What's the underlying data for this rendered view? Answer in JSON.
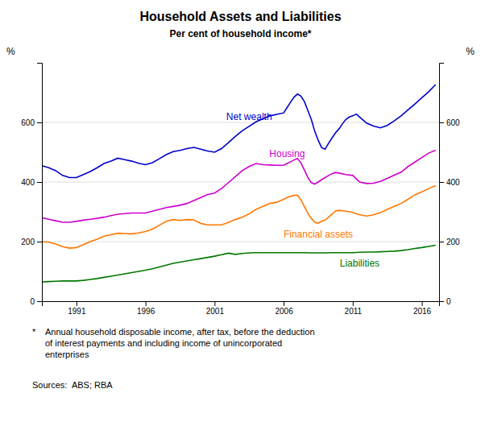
{
  "chart_data": {
    "type": "line",
    "title": "Household Assets and Liabilities",
    "subtitle": "Per cent of household income*",
    "y_label": "%",
    "y2_label": "%",
    "footnote_marker": "*",
    "footnote": "Annual household disposable income, after tax, before the deduction\nof interest payments and including income of unincorporated\nenterprises",
    "source": "Sources:  ABS; RBA",
    "xlim": [
      1988.5,
      2017.25
    ],
    "xticks": [
      1991,
      1996,
      2001,
      2006,
      2011,
      2016
    ],
    "ylim": [
      0,
      800
    ],
    "yticks": [
      0,
      200,
      400,
      600
    ],
    "y2lim": [
      0,
      800
    ],
    "y2ticks": [
      0,
      200,
      400,
      600
    ],
    "grid": true,
    "series": [
      {
        "name": "Net wealth",
        "color": "#0000CC",
        "x": [
          1988.5,
          1989.0,
          1989.5,
          1990.0,
          1990.5,
          1991.0,
          1991.5,
          1992.0,
          1992.5,
          1993.0,
          1993.5,
          1994.0,
          1994.5,
          1995.0,
          1995.5,
          1996.0,
          1996.5,
          1997.0,
          1997.5,
          1998.0,
          1998.5,
          1999.0,
          1999.5,
          2000.0,
          2000.5,
          2001.0,
          2001.5,
          2002.0,
          2002.5,
          2003.0,
          2003.5,
          2004.0,
          2004.5,
          2005.0,
          2005.5,
          2006.0,
          2006.25,
          2006.5,
          2006.75,
          2007.0,
          2007.25,
          2007.5,
          2007.75,
          2008.0,
          2008.25,
          2008.5,
          2008.75,
          2009.0,
          2009.25,
          2009.5,
          2009.75,
          2010.0,
          2010.25,
          2010.5,
          2010.75,
          2011.0,
          2011.25,
          2011.5,
          2011.75,
          2012.0,
          2012.5,
          2013.0,
          2013.5,
          2014.0,
          2014.5,
          2015.0,
          2015.5,
          2016.0,
          2016.5,
          2017.0
        ],
        "values": [
          455,
          448,
          438,
          422,
          415,
          415,
          425,
          435,
          448,
          462,
          470,
          480,
          475,
          470,
          463,
          458,
          465,
          478,
          492,
          502,
          506,
          512,
          516,
          510,
          504,
          500,
          512,
          532,
          553,
          572,
          587,
          602,
          612,
          622,
          627,
          632,
          650,
          668,
          685,
          695,
          688,
          670,
          640,
          610,
          570,
          540,
          515,
          510,
          530,
          548,
          565,
          578,
          595,
          610,
          618,
          622,
          628,
          618,
          608,
          598,
          588,
          582,
          590,
          605,
          622,
          642,
          662,
          683,
          703,
          727
        ]
      },
      {
        "name": "Housing",
        "color": "#CC00CC",
        "x": [
          1988.5,
          1989.0,
          1989.5,
          1990.0,
          1990.5,
          1991.0,
          1991.5,
          1992.0,
          1992.5,
          1993.0,
          1993.5,
          1994.0,
          1994.5,
          1995.0,
          1995.5,
          1996.0,
          1996.5,
          1997.0,
          1997.5,
          1998.0,
          1998.5,
          1999.0,
          1999.5,
          2000.0,
          2000.5,
          2001.0,
          2001.5,
          2002.0,
          2002.5,
          2003.0,
          2003.5,
          2004.0,
          2004.5,
          2005.0,
          2005.5,
          2006.0,
          2006.25,
          2006.5,
          2006.75,
          2007.0,
          2007.25,
          2007.5,
          2007.75,
          2008.0,
          2008.25,
          2008.5,
          2008.75,
          2009.0,
          2009.25,
          2009.5,
          2009.75,
          2010.0,
          2010.5,
          2011.0,
          2011.5,
          2012.0,
          2012.5,
          2013.0,
          2013.5,
          2014.0,
          2014.5,
          2015.0,
          2015.5,
          2016.0,
          2016.5,
          2017.0
        ],
        "values": [
          280,
          275,
          270,
          265,
          265,
          268,
          272,
          275,
          278,
          282,
          287,
          292,
          294,
          296,
          296,
          296,
          302,
          308,
          314,
          318,
          322,
          328,
          338,
          348,
          358,
          363,
          378,
          398,
          418,
          438,
          452,
          462,
          458,
          457,
          456,
          456,
          462,
          468,
          474,
          479,
          464,
          440,
          415,
          398,
          393,
          400,
          408,
          415,
          422,
          428,
          432,
          430,
          425,
          422,
          400,
          395,
          396,
          402,
          412,
          423,
          433,
          452,
          467,
          482,
          497,
          507
        ]
      },
      {
        "name": "Financial assets",
        "color": "#FF7700",
        "x": [
          1988.5,
          1989.0,
          1989.5,
          1990.0,
          1990.5,
          1991.0,
          1991.5,
          1992.0,
          1992.5,
          1993.0,
          1993.5,
          1994.0,
          1994.5,
          1995.0,
          1995.5,
          1996.0,
          1996.5,
          1997.0,
          1997.5,
          1998.0,
          1998.5,
          1999.0,
          1999.5,
          2000.0,
          2000.5,
          2001.0,
          2001.5,
          2002.0,
          2002.5,
          2003.0,
          2003.5,
          2004.0,
          2004.5,
          2005.0,
          2005.5,
          2006.0,
          2006.25,
          2006.5,
          2006.75,
          2007.0,
          2007.25,
          2007.5,
          2007.75,
          2008.0,
          2008.25,
          2008.5,
          2008.75,
          2009.0,
          2009.25,
          2009.5,
          2009.75,
          2010.0,
          2010.5,
          2011.0,
          2011.5,
          2012.0,
          2012.5,
          2013.0,
          2013.5,
          2014.0,
          2014.5,
          2015.0,
          2015.5,
          2016.0,
          2016.5,
          2017.0
        ],
        "values": [
          200,
          198,
          192,
          183,
          178,
          180,
          190,
          200,
          208,
          218,
          223,
          228,
          227,
          226,
          229,
          234,
          242,
          255,
          268,
          274,
          271,
          274,
          273,
          261,
          256,
          256,
          256,
          264,
          274,
          282,
          293,
          308,
          318,
          328,
          332,
          342,
          348,
          352,
          355,
          356,
          340,
          318,
          295,
          278,
          265,
          262,
          268,
          272,
          282,
          292,
          302,
          305,
          302,
          298,
          290,
          286,
          290,
          297,
          308,
          318,
          328,
          342,
          357,
          367,
          378,
          388
        ]
      },
      {
        "name": "Liabilities",
        "color": "#007700",
        "x": [
          1988.5,
          1989.0,
          1989.5,
          1990.0,
          1990.5,
          1991.0,
          1991.5,
          1992.0,
          1992.5,
          1993.0,
          1993.5,
          1994.0,
          1994.5,
          1995.0,
          1995.5,
          1996.0,
          1996.5,
          1997.0,
          1997.5,
          1998.0,
          1998.5,
          1999.0,
          1999.5,
          2000.0,
          2000.5,
          2001.0,
          2001.5,
          2002.0,
          2002.5,
          2003.0,
          2003.5,
          2004.0,
          2004.5,
          2005.0,
          2005.5,
          2006.0,
          2006.5,
          2007.0,
          2007.5,
          2008.0,
          2008.5,
          2009.0,
          2009.5,
          2010.0,
          2010.5,
          2011.0,
          2011.5,
          2012.0,
          2012.5,
          2013.0,
          2013.5,
          2014.0,
          2014.5,
          2015.0,
          2015.5,
          2016.0,
          2016.5,
          2017.0
        ],
        "values": [
          65,
          66,
          67,
          68,
          68,
          68,
          70,
          73,
          76,
          80,
          84,
          88,
          92,
          96,
          100,
          104,
          109,
          115,
          121,
          127,
          131,
          135,
          139,
          143,
          147,
          151,
          156,
          161,
          157,
          160,
          162,
          163,
          163,
          163,
          163,
          163,
          163,
          163,
          163,
          162,
          162,
          162,
          163,
          163,
          163,
          163,
          164,
          165,
          165,
          166,
          167,
          168,
          170,
          173,
          177,
          180,
          184,
          188
        ]
      }
    ]
  }
}
